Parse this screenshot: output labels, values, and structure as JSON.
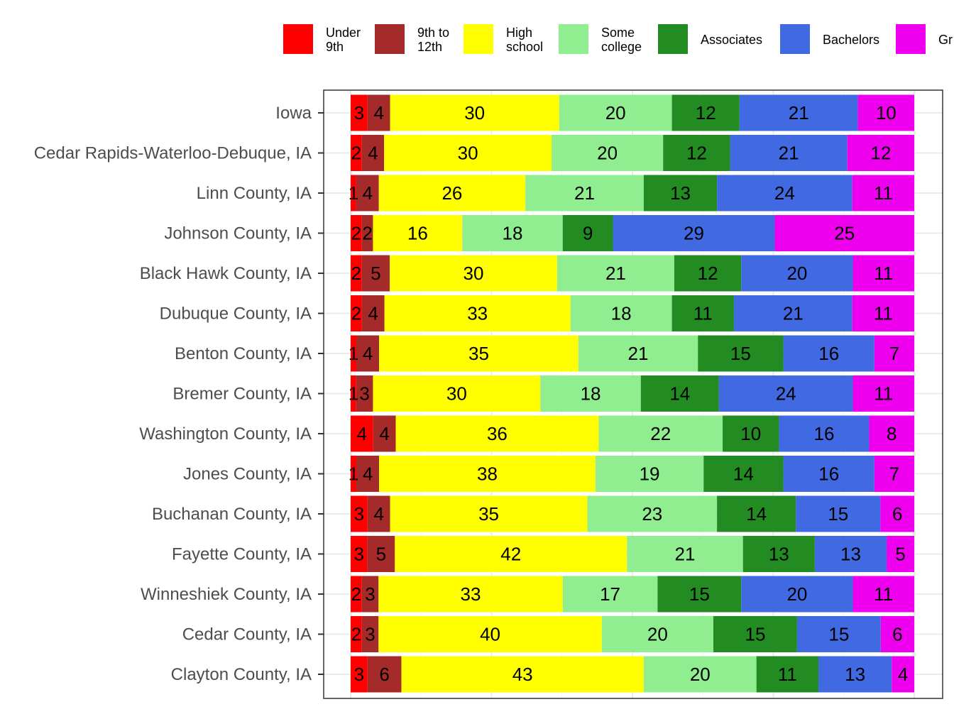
{
  "chart_data": {
    "type": "bar",
    "orientation": "horizontal",
    "stacked": true,
    "legend_position": "top",
    "grid": true,
    "xlim": [
      0,
      100
    ],
    "categories": [
      "Iowa",
      "Cedar Rapids-Waterloo-Debuque, IA",
      "Linn County, IA",
      "Johnson County, IA",
      "Black Hawk County, IA",
      "Dubuque County, IA",
      "Benton County, IA",
      "Bremer County, IA",
      "Washington County, IA",
      "Jones County, IA",
      "Buchanan County, IA",
      "Fayette County, IA",
      "Winneshiek County, IA",
      "Cedar County, IA",
      "Clayton County, IA"
    ],
    "series": [
      {
        "name": [
          "Under",
          "9th"
        ],
        "color": "#ff0000",
        "values": [
          3,
          2,
          1,
          2,
          2,
          2,
          1,
          1,
          4,
          1,
          3,
          3,
          2,
          2,
          3
        ]
      },
      {
        "name": [
          "9th to",
          "12th"
        ],
        "color": "#a52a2a",
        "values": [
          4,
          4,
          4,
          2,
          5,
          4,
          4,
          3,
          4,
          4,
          4,
          5,
          3,
          3,
          6
        ]
      },
      {
        "name": [
          "High",
          "school"
        ],
        "color": "#ffff00",
        "values": [
          30,
          30,
          26,
          16,
          30,
          33,
          35,
          30,
          36,
          38,
          35,
          42,
          33,
          40,
          43
        ]
      },
      {
        "name": [
          "Some",
          "college"
        ],
        "color": "#90ee90",
        "values": [
          20,
          20,
          21,
          18,
          21,
          18,
          21,
          18,
          22,
          19,
          23,
          21,
          17,
          20,
          20
        ]
      },
      {
        "name": [
          "Associates"
        ],
        "color": "#228b22",
        "values": [
          12,
          12,
          13,
          9,
          12,
          11,
          15,
          14,
          10,
          14,
          14,
          13,
          15,
          15,
          11
        ]
      },
      {
        "name": [
          "Bachelors"
        ],
        "color": "#4169e1",
        "values": [
          21,
          21,
          24,
          29,
          20,
          21,
          16,
          24,
          16,
          16,
          15,
          13,
          20,
          15,
          13
        ]
      },
      {
        "name": [
          "Gr"
        ],
        "color": "#ee00ee",
        "values": [
          10,
          12,
          11,
          25,
          11,
          11,
          7,
          11,
          8,
          7,
          6,
          5,
          11,
          6,
          4
        ]
      }
    ],
    "title": "",
    "xlabel": "",
    "ylabel": ""
  }
}
